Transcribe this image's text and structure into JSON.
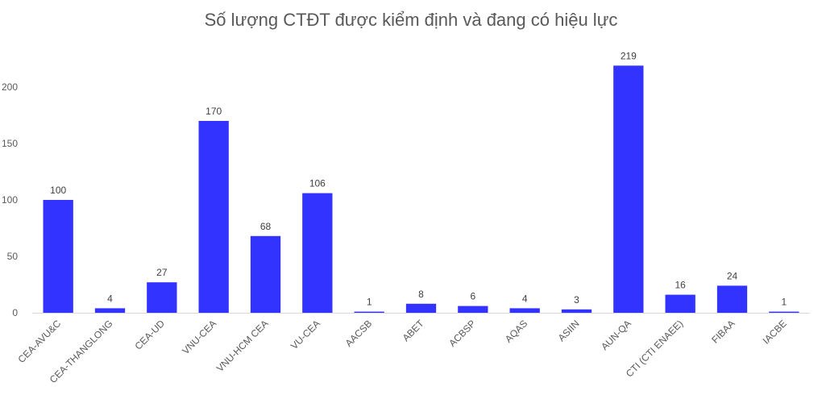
{
  "chart_data": {
    "type": "bar",
    "title": "Số lượng CTĐT được kiểm định và đang có hiệu lực",
    "xlabel": "",
    "ylabel": "",
    "categories": [
      "CEA-AVU&C",
      "CEA-THANGLONG",
      "CEA-UD",
      "VNU-CEA",
      "VNU-HCM CEA",
      "VU-CEA",
      "AACSB",
      "ABET",
      "ACBSP",
      "AQAS",
      "ASIIN",
      "AUN-QA",
      "CTI (CTI ENAEE)",
      "FIBAA",
      "IACBE"
    ],
    "values": [
      100,
      4,
      27,
      170,
      68,
      106,
      1,
      8,
      6,
      4,
      3,
      219,
      16,
      24,
      1
    ],
    "ylim": [
      0,
      250
    ],
    "yticks": [
      0,
      50,
      100,
      150,
      200
    ],
    "grid": false,
    "legend": "none",
    "bar_color": "#3333FF",
    "axis_color": "#D9D9D9"
  }
}
